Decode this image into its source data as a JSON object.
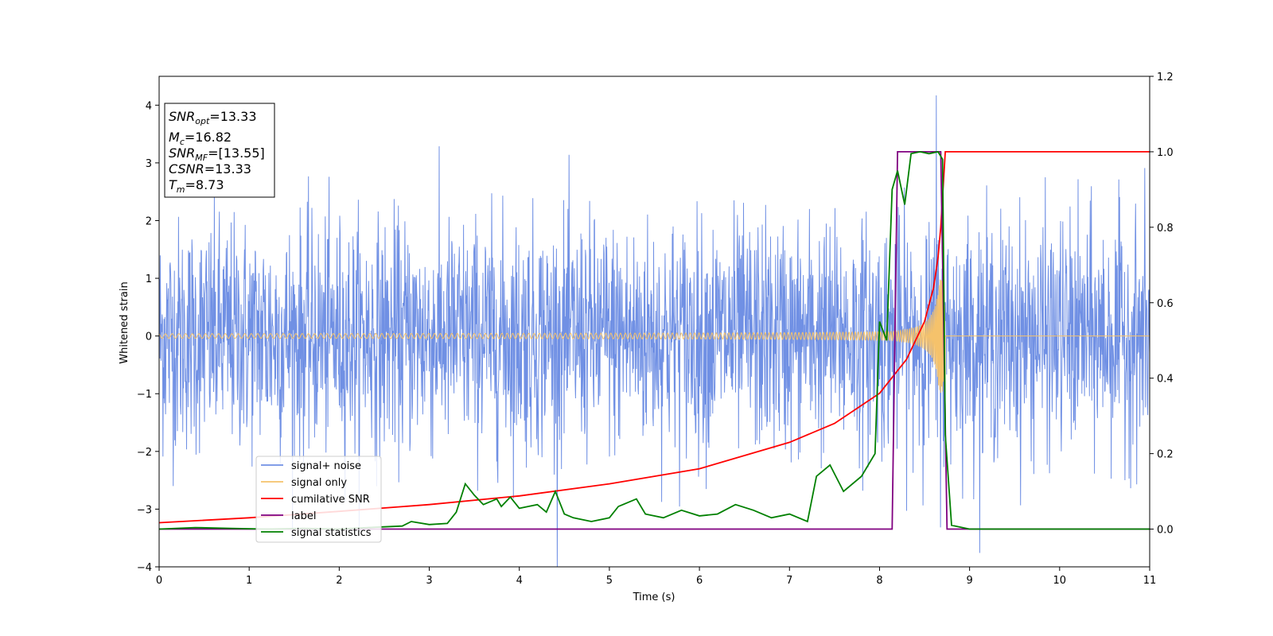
{
  "chart_data": {
    "type": "line",
    "xlabel": "Time (s)",
    "ylabel": "Whitened strain",
    "xlim": [
      0,
      11
    ],
    "ylim": [
      -4,
      4.5
    ],
    "ylim_right": [
      -0.1,
      1.2
    ],
    "xticks": [
      "0",
      "1",
      "2",
      "3",
      "4",
      "5",
      "6",
      "7",
      "8",
      "9",
      "10",
      "11"
    ],
    "yticks_left": [
      "−4",
      "−3",
      "−2",
      "−1",
      "0",
      "1",
      "2",
      "3",
      "4"
    ],
    "yticks_right": [
      "0.0",
      "0.2",
      "0.4",
      "0.6",
      "0.8",
      "1.0",
      "1.2"
    ],
    "legend_position": "lower-left",
    "info_box": {
      "snr_opt_base": "SNR",
      "snr_opt_sub": "opt",
      "snr_opt_value": "=13.33",
      "mc_base": "M",
      "mc_sub": "c",
      "mc_value": "=16.82",
      "snr_mf_base": "SNR",
      "snr_mf_sub": "MF",
      "snr_mf_value": "=[13.55]",
      "csnr_base": "CSNR",
      "csnr_value": "=13.33",
      "tm_base": "T",
      "tm_sub": "m",
      "tm_value": "=8.73"
    },
    "series": [
      {
        "name": "signal+ noise",
        "color": "#7090e4",
        "axis": "left",
        "noise_std": 1.0,
        "peak_x": 8.63,
        "peak_y": 4.17
      },
      {
        "name": "signal only",
        "color": "#f5c26b",
        "axis": "left",
        "chirp_start_x": 0,
        "chirp_end_x": 8.73,
        "start_amplitude": 0.04,
        "end_amplitude": 1.0
      },
      {
        "name": "cumilative SNR",
        "color": "#ff0000",
        "axis": "right",
        "points": [
          [
            0,
            0.017
          ],
          [
            1,
            0.03
          ],
          [
            2,
            0.047
          ],
          [
            3,
            0.065
          ],
          [
            4,
            0.088
          ],
          [
            5,
            0.12
          ],
          [
            6,
            0.16
          ],
          [
            7,
            0.23
          ],
          [
            7.5,
            0.28
          ],
          [
            8,
            0.36
          ],
          [
            8.3,
            0.45
          ],
          [
            8.5,
            0.55
          ],
          [
            8.6,
            0.64
          ],
          [
            8.65,
            0.72
          ],
          [
            8.68,
            0.8
          ],
          [
            8.71,
            0.92
          ],
          [
            8.73,
            1.0
          ],
          [
            11,
            1.0
          ]
        ]
      },
      {
        "name": "label",
        "color": "#800080",
        "axis": "right",
        "points": [
          [
            0,
            0.0
          ],
          [
            8.14,
            0.0
          ],
          [
            8.2,
            1.0
          ],
          [
            8.68,
            1.0
          ],
          [
            8.75,
            0.0
          ],
          [
            11,
            0.0
          ]
        ]
      },
      {
        "name": "signal statistics",
        "color": "#008000",
        "axis": "right",
        "points": [
          [
            0,
            0.0
          ],
          [
            0.4,
            0.004
          ],
          [
            0.8,
            0.002
          ],
          [
            1.2,
            0.0
          ],
          [
            1.6,
            0.002
          ],
          [
            2.0,
            0.0
          ],
          [
            2.4,
            0.005
          ],
          [
            2.7,
            0.008
          ],
          [
            2.8,
            0.02
          ],
          [
            3.0,
            0.012
          ],
          [
            3.2,
            0.015
          ],
          [
            3.3,
            0.045
          ],
          [
            3.4,
            0.12
          ],
          [
            3.5,
            0.09
          ],
          [
            3.6,
            0.065
          ],
          [
            3.75,
            0.08
          ],
          [
            3.8,
            0.06
          ],
          [
            3.9,
            0.085
          ],
          [
            4.0,
            0.055
          ],
          [
            4.2,
            0.065
          ],
          [
            4.3,
            0.045
          ],
          [
            4.4,
            0.1
          ],
          [
            4.5,
            0.04
          ],
          [
            4.6,
            0.03
          ],
          [
            4.8,
            0.02
          ],
          [
            5.0,
            0.03
          ],
          [
            5.1,
            0.06
          ],
          [
            5.3,
            0.08
          ],
          [
            5.4,
            0.04
          ],
          [
            5.6,
            0.03
          ],
          [
            5.8,
            0.05
          ],
          [
            6.0,
            0.035
          ],
          [
            6.2,
            0.04
          ],
          [
            6.4,
            0.065
          ],
          [
            6.6,
            0.05
          ],
          [
            6.8,
            0.03
          ],
          [
            7.0,
            0.04
          ],
          [
            7.2,
            0.02
          ],
          [
            7.3,
            0.14
          ],
          [
            7.45,
            0.17
          ],
          [
            7.6,
            0.1
          ],
          [
            7.8,
            0.14
          ],
          [
            7.95,
            0.2
          ],
          [
            8.0,
            0.55
          ],
          [
            8.08,
            0.5
          ],
          [
            8.14,
            0.9
          ],
          [
            8.2,
            0.95
          ],
          [
            8.28,
            0.86
          ],
          [
            8.35,
            0.995
          ],
          [
            8.45,
            1.0
          ],
          [
            8.55,
            0.995
          ],
          [
            8.65,
            1.0
          ],
          [
            8.7,
            0.98
          ],
          [
            8.73,
            0.25
          ],
          [
            8.8,
            0.01
          ],
          [
            9.0,
            0.0
          ],
          [
            11,
            0.0
          ]
        ]
      }
    ]
  }
}
